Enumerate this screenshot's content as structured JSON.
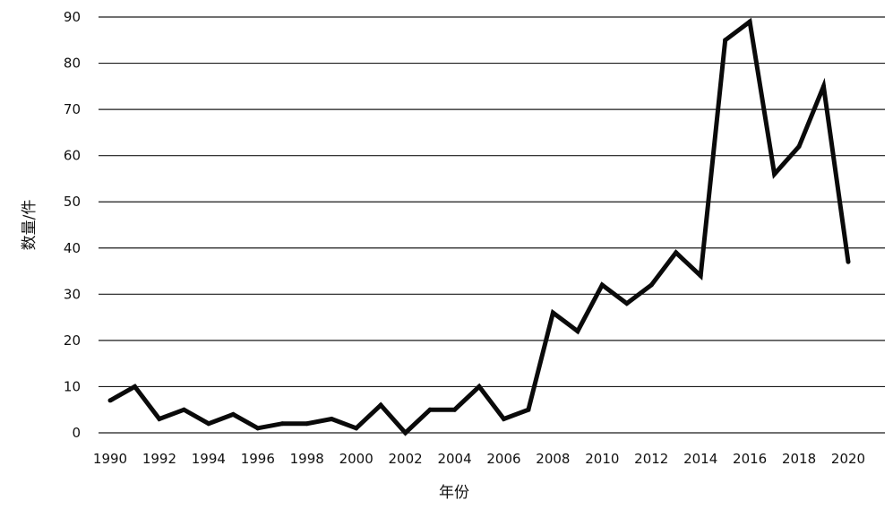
{
  "chart_data": {
    "type": "line",
    "xlabel": "年份",
    "ylabel": "数量/件",
    "ylim": [
      0,
      90
    ],
    "y_ticks": [
      0,
      10,
      20,
      30,
      40,
      50,
      60,
      70,
      80,
      90
    ],
    "x_ticks": [
      1990,
      1992,
      1994,
      1996,
      1998,
      2000,
      2002,
      2004,
      2006,
      2008,
      2010,
      2012,
      2014,
      2016,
      2018,
      2020
    ],
    "grid": "horizontal",
    "line_color": "#0a0a0a",
    "x": [
      1990,
      1991,
      1992,
      1993,
      1994,
      1995,
      1996,
      1997,
      1998,
      1999,
      2000,
      2001,
      2002,
      2003,
      2004,
      2005,
      2006,
      2007,
      2008,
      2009,
      2010,
      2011,
      2012,
      2013,
      2014,
      2015,
      2016,
      2017,
      2018,
      2019,
      2020
    ],
    "series": [
      {
        "values": [
          7,
          10,
          3,
          5,
          2,
          4,
          1,
          2,
          2,
          3,
          1,
          6,
          0,
          5,
          5,
          10,
          3,
          5,
          26,
          22,
          32,
          28,
          32,
          39,
          34,
          85,
          89,
          56,
          62,
          75,
          37
        ]
      }
    ]
  }
}
